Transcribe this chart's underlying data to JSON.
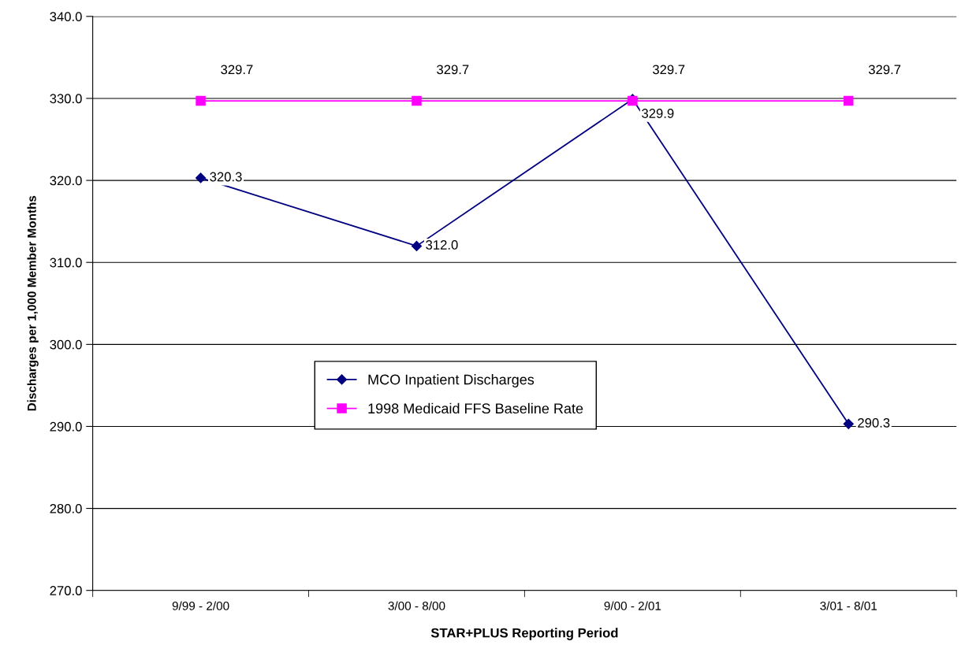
{
  "chart_data": {
    "type": "line",
    "xlabel": "STAR+PLUS Reporting Period",
    "ylabel": "Discharges per 1,000 Member Months",
    "categories": [
      "9/99 - 2/00",
      "3/00 - 8/00",
      "9/00 - 2/01",
      "3/01 - 8/01"
    ],
    "series": [
      {
        "name": "MCO Inpatient Discharges",
        "color": "#000080",
        "marker": "diamond",
        "values": [
          320.3,
          312.0,
          329.9,
          290.3
        ],
        "value_labels": [
          "320.3",
          "312.0",
          "329.9",
          "290.3"
        ]
      },
      {
        "name": "1998 Medicaid FFS Baseline Rate",
        "color": "#ff00ff",
        "marker": "square",
        "values": [
          329.7,
          329.7,
          329.7,
          329.7
        ],
        "value_labels": [
          "329.7",
          "329.7",
          "329.7",
          "329.7"
        ]
      }
    ],
    "ylim": [
      270,
      340
    ],
    "yticks": [
      {
        "value": 270,
        "label": "270.0"
      },
      {
        "value": 280,
        "label": "280.0"
      },
      {
        "value": 290,
        "label": "290.0"
      },
      {
        "value": 300,
        "label": "300.0"
      },
      {
        "value": 310,
        "label": "310.0"
      },
      {
        "value": 320,
        "label": "320.0"
      },
      {
        "value": 330,
        "label": "330.0"
      },
      {
        "value": 340,
        "label": "340.0"
      }
    ],
    "grid": "y",
    "legend": "center",
    "line_style": "solid"
  }
}
